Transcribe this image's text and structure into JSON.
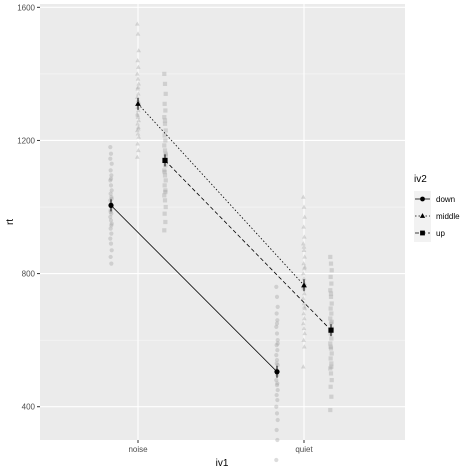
{
  "chart_data": {
    "type": "line",
    "xlabel": "iv1",
    "ylabel": "rt",
    "categories": [
      "noise",
      "quiet"
    ],
    "ylim": [
      300,
      1610
    ],
    "y_ticks": [
      400,
      800,
      1200,
      1600
    ],
    "grid": true,
    "legend": {
      "title": "iv2",
      "position": "right"
    },
    "series": [
      {
        "name": "down",
        "marker": "circle",
        "line": "solid",
        "values": [
          1005,
          505
        ],
        "raw": [
          [
            1180,
            1160,
            1130,
            1110,
            1095,
            1080,
            1065,
            1050,
            1040,
            1030,
            1020,
            1010,
            1000,
            990,
            980,
            970,
            960,
            950,
            935,
            920,
            905,
            890,
            870,
            850,
            830,
            1145,
            1085,
            1025,
            985,
            945
          ],
          [
            760,
            730,
            700,
            680,
            660,
            640,
            620,
            600,
            585,
            570,
            555,
            540,
            525,
            510,
            495,
            480,
            465,
            450,
            435,
            420,
            400,
            380,
            360,
            330,
            300,
            240,
            650,
            590,
            530,
            470
          ]
        ]
      },
      {
        "name": "middle",
        "marker": "triangle",
        "line": "dotted",
        "values": [
          1310,
          765
        ],
        "raw": [
          [
            1550,
            1520,
            1470,
            1440,
            1420,
            1400,
            1385,
            1370,
            1355,
            1340,
            1330,
            1320,
            1310,
            1300,
            1290,
            1280,
            1270,
            1260,
            1250,
            1240,
            1230,
            1220,
            1210,
            1190,
            1170,
            1150,
            1360,
            1315,
            1275,
            1235
          ],
          [
            1030,
            1000,
            970,
            940,
            910,
            890,
            870,
            850,
            830,
            815,
            800,
            785,
            770,
            755,
            740,
            725,
            710,
            695,
            680,
            665,
            650,
            635,
            620,
            600,
            580,
            520,
            880,
            820,
            760,
            700
          ]
        ]
      },
      {
        "name": "up",
        "marker": "square",
        "line": "dashed",
        "values": [
          1140,
          630
        ],
        "raw": [
          [
            1400,
            1370,
            1340,
            1310,
            1290,
            1270,
            1250,
            1230,
            1215,
            1200,
            1185,
            1170,
            1155,
            1140,
            1125,
            1110,
            1095,
            1080,
            1065,
            1050,
            1035,
            1020,
            1000,
            980,
            955,
            930,
            1260,
            1160,
            1105,
            1045
          ],
          [
            850,
            830,
            810,
            790,
            770,
            750,
            730,
            710,
            695,
            680,
            665,
            650,
            635,
            620,
            605,
            590,
            575,
            560,
            545,
            530,
            515,
            500,
            480,
            460,
            430,
            390,
            740,
            655,
            580,
            520
          ]
        ]
      }
    ]
  }
}
